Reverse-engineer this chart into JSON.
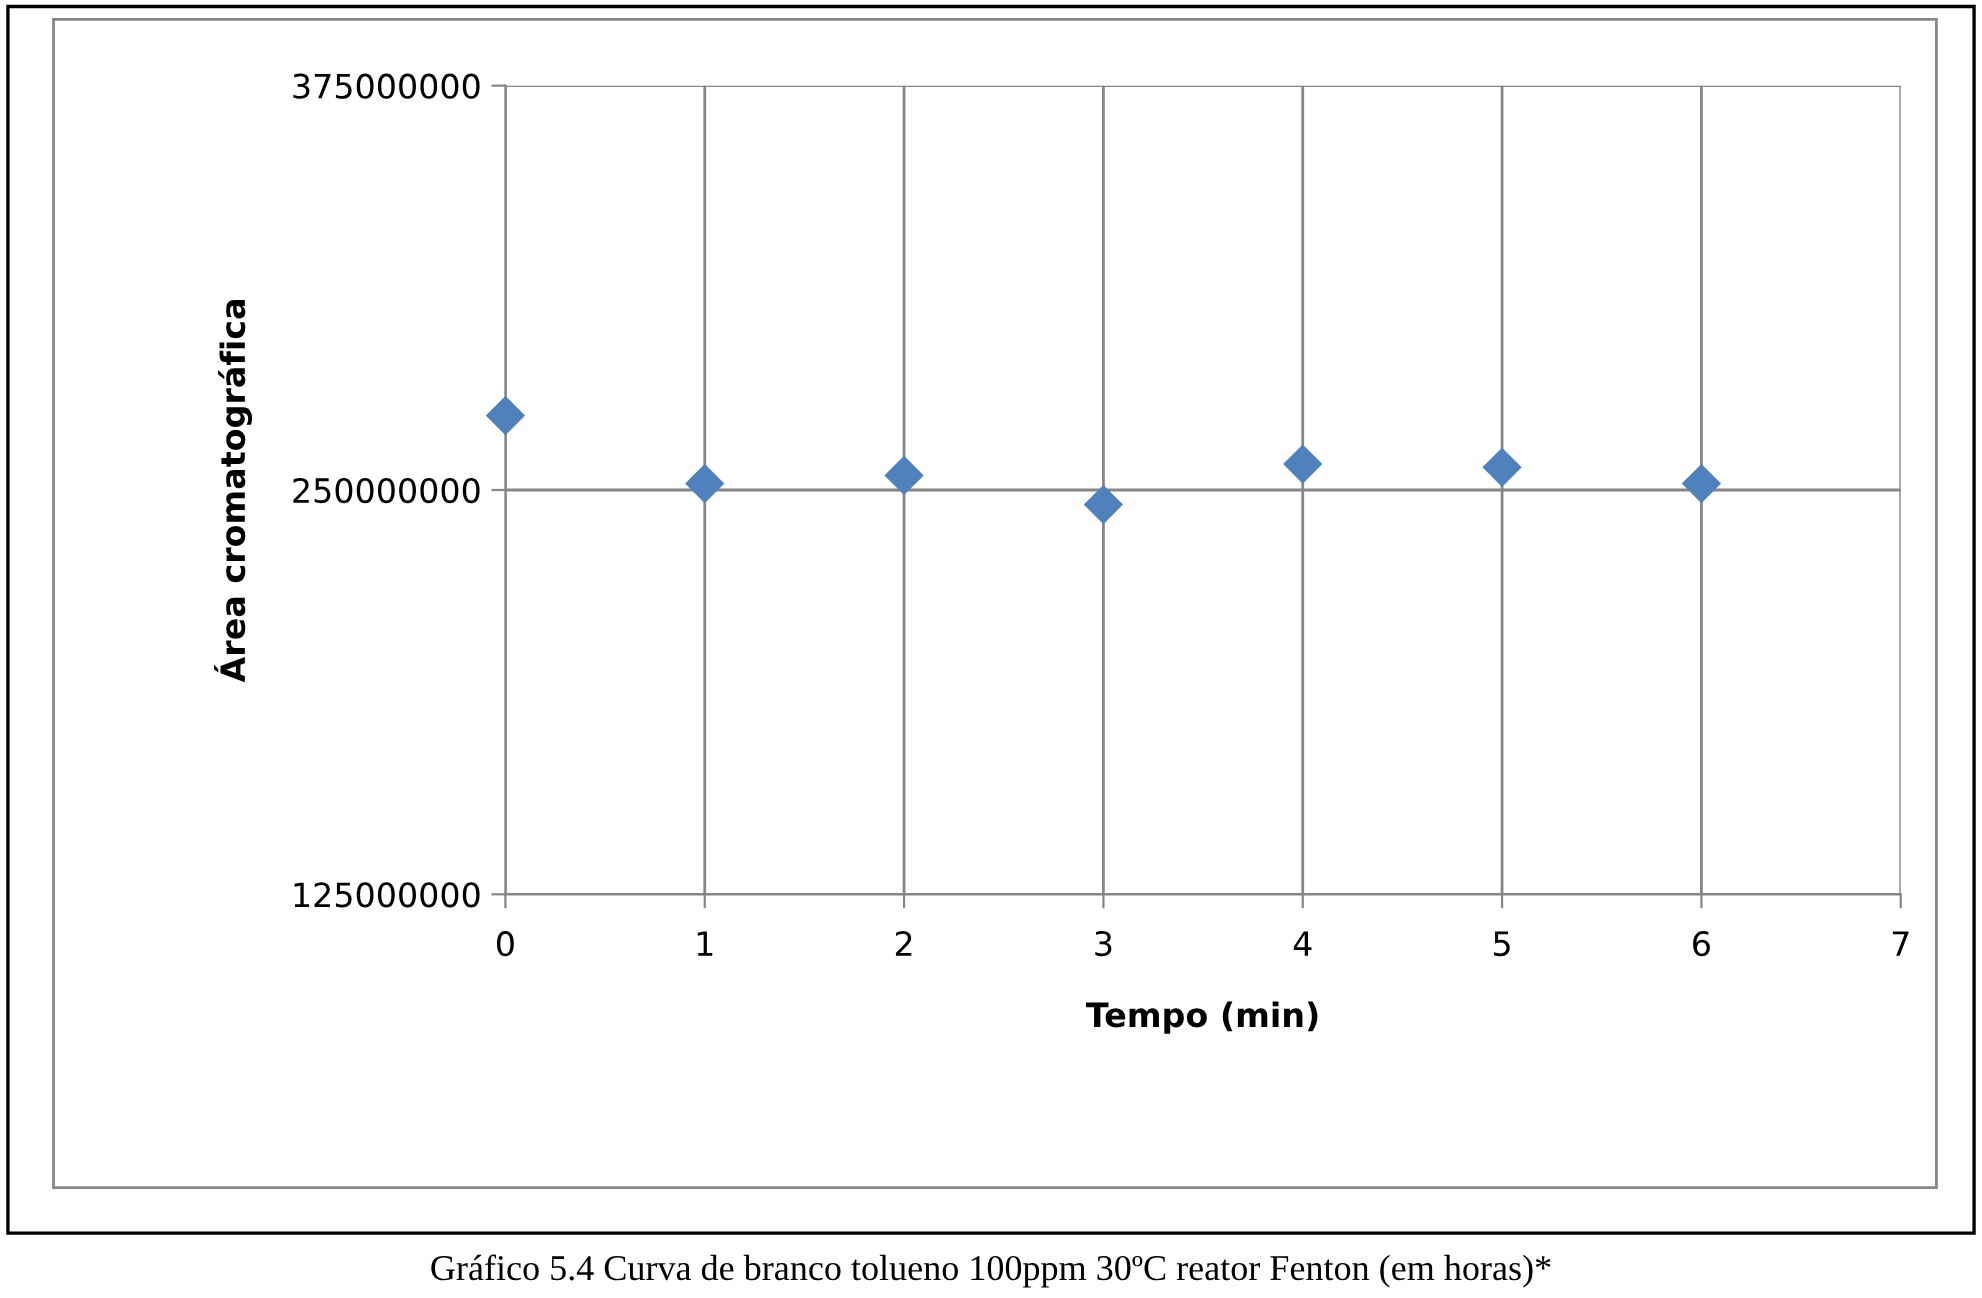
{
  "chart_data": {
    "type": "scatter",
    "xlabel": "Tempo (min)",
    "ylabel": "Área cromatográfica",
    "x": [
      0,
      1,
      2,
      3,
      4,
      5,
      6
    ],
    "series": [
      {
        "color": "#4f81bd",
        "values": [
          273000000,
          252000000,
          254500000,
          245500000,
          258000000,
          257000000,
          252000000
        ]
      }
    ],
    "xlim": [
      0,
      7
    ],
    "xticks": [
      0,
      1,
      2,
      3,
      4,
      5,
      6,
      7
    ],
    "ylim": [
      125000000,
      375000000
    ],
    "yticks": [
      125000000,
      250000000,
      375000000
    ],
    "grid": true,
    "marker": "diamond",
    "legend": false,
    "annotations": [
      "Gráfico 5.4 Curva de branco tolueno 100ppm 30ºC reator Fenton (em horas)*"
    ]
  }
}
